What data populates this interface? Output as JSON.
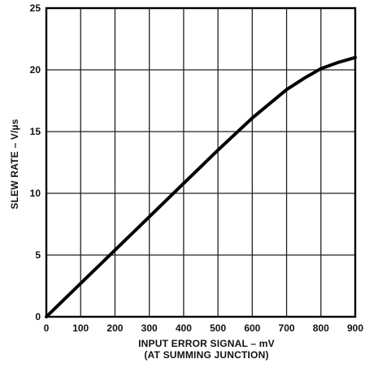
{
  "chart_data": {
    "type": "line",
    "title": "",
    "xlabel": "INPUT ERROR SIGNAL – mV",
    "xlabel_sub": "(AT SUMMING JUNCTION)",
    "ylabel": "SLEW RATE – V/µs",
    "xlim": [
      0,
      900
    ],
    "ylim": [
      0,
      25
    ],
    "xticks": [
      0,
      100,
      200,
      300,
      400,
      500,
      600,
      700,
      800,
      900
    ],
    "yticks": [
      0,
      5,
      10,
      15,
      20,
      25
    ],
    "xtick_labels": [
      "0",
      "100",
      "200",
      "300",
      "400",
      "500",
      "600",
      "700",
      "800",
      "900"
    ],
    "ytick_labels": [
      "0",
      "5",
      "10",
      "15",
      "20",
      "25"
    ],
    "grid": true,
    "series": [
      {
        "x": [
          0,
          100,
          200,
          300,
          400,
          500,
          600,
          700,
          750,
          800,
          850,
          900
        ],
        "y": [
          0,
          2.7,
          5.4,
          8.1,
          10.8,
          13.5,
          16.1,
          18.4,
          19.3,
          20.1,
          20.6,
          21.0
        ],
        "color": "#000000"
      }
    ]
  }
}
